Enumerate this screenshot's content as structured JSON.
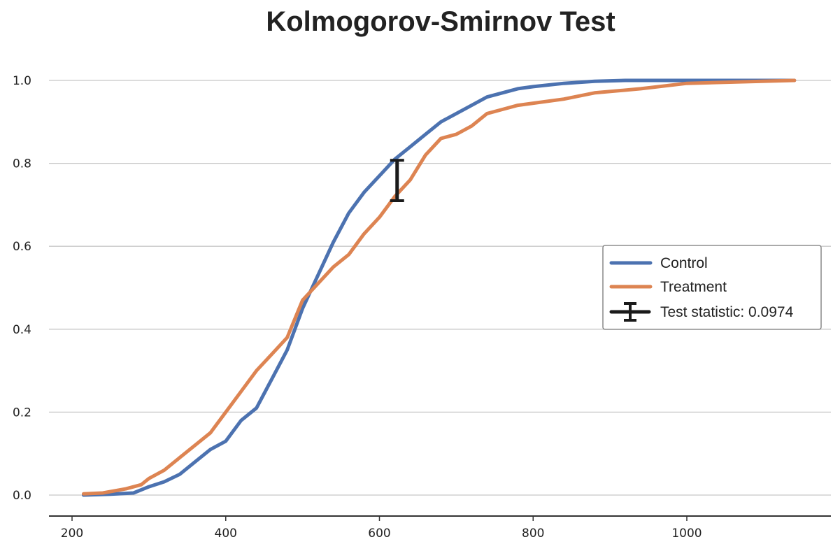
{
  "chart_data": {
    "type": "line",
    "title": "Kolmogorov-Smirnov Test",
    "xlabel": "",
    "ylabel": "",
    "xlim": [
      170,
      1190
    ],
    "ylim": [
      -0.05,
      1.05
    ],
    "x_ticks": [
      200,
      400,
      600,
      800,
      1000
    ],
    "x_tick_labels": [
      "200",
      "400",
      "600",
      "800",
      "1000"
    ],
    "y_ticks": [
      0.0,
      0.2,
      0.4,
      0.6,
      0.8,
      1.0
    ],
    "y_tick_labels": [
      "0.0",
      "0.2",
      "0.4",
      "0.6",
      "0.8",
      "1.0"
    ],
    "grid": "horizontal",
    "legend_position": "center-right",
    "series": [
      {
        "name": "Control",
        "color": "#4c72b0",
        "x": [
          215,
          250,
          280,
          300,
          320,
          340,
          360,
          380,
          400,
          420,
          440,
          460,
          480,
          500,
          520,
          540,
          560,
          580,
          600,
          620,
          640,
          660,
          680,
          700,
          720,
          740,
          760,
          780,
          800,
          840,
          880,
          920,
          1000,
          1140
        ],
        "y": [
          0.0,
          0.002,
          0.005,
          0.02,
          0.032,
          0.05,
          0.08,
          0.11,
          0.13,
          0.18,
          0.21,
          0.28,
          0.35,
          0.45,
          0.53,
          0.61,
          0.68,
          0.73,
          0.77,
          0.81,
          0.84,
          0.87,
          0.9,
          0.92,
          0.94,
          0.96,
          0.97,
          0.98,
          0.985,
          0.993,
          0.998,
          1.0,
          1.0,
          1.0
        ]
      },
      {
        "name": "Treatment",
        "color": "#dd8452",
        "x": [
          215,
          240,
          270,
          290,
          300,
          320,
          340,
          360,
          380,
          400,
          420,
          440,
          460,
          480,
          500,
          520,
          540,
          560,
          580,
          600,
          620,
          640,
          660,
          680,
          700,
          720,
          740,
          760,
          780,
          800,
          840,
          880,
          940,
          1000,
          1140
        ],
        "y": [
          0.003,
          0.005,
          0.015,
          0.025,
          0.04,
          0.06,
          0.09,
          0.12,
          0.15,
          0.2,
          0.25,
          0.3,
          0.34,
          0.38,
          0.47,
          0.51,
          0.55,
          0.58,
          0.63,
          0.67,
          0.72,
          0.76,
          0.82,
          0.86,
          0.87,
          0.89,
          0.92,
          0.93,
          0.94,
          0.945,
          0.955,
          0.97,
          0.98,
          0.993,
          1.0
        ]
      }
    ],
    "statistic": {
      "label": "Test statistic: 0.0974",
      "value": 0.0974,
      "x": 623,
      "y_low": 0.71,
      "y_high": 0.8074,
      "color": "#1a1a1a"
    }
  }
}
